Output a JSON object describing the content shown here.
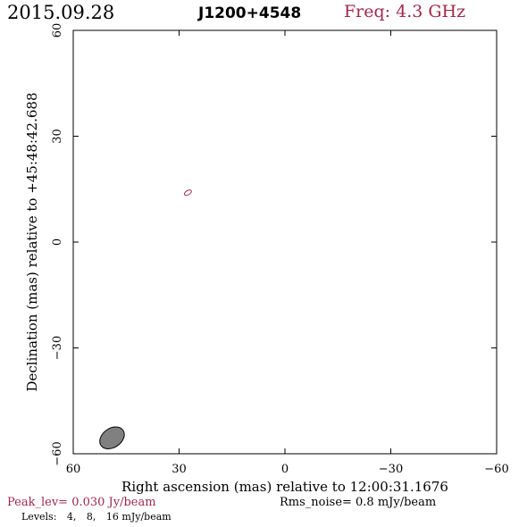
{
  "header": {
    "date": "2015.09.28",
    "source": "J1200+4548",
    "freq": "Freq: 4.3 GHz"
  },
  "footer": {
    "peak": "Peak_lev=  0.030 Jy/beam",
    "rms": "Rms_noise=   0.8 mJy/beam",
    "levels_label": "Levels:",
    "levels": [
      "4,",
      "8,",
      "16 mJy/beam"
    ]
  },
  "colors": {
    "accent": "#a0284a",
    "beam_fill": "#808080",
    "axis": "#000000"
  },
  "chart_data": {
    "type": "contour",
    "title": "J1200+4548",
    "xlabel": "Right ascension (mas) relative to 12:00:31.1676",
    "ylabel": "Declination (mas) relative to +45:48:42.688",
    "xlim": [
      60,
      -60
    ],
    "ylim": [
      -60,
      60
    ],
    "xticks": [
      60,
      30,
      0,
      -30,
      -60
    ],
    "yticks": [
      60,
      30,
      0,
      -30,
      -60
    ],
    "xtick_labels": [
      "60",
      "30",
      "0",
      "−30",
      "−60"
    ],
    "ytick_labels": [
      "60",
      "30",
      "0",
      "−30",
      "−60"
    ],
    "contour_levels_mJy": [
      4,
      8,
      16
    ],
    "contours": [
      {
        "level_mJy": 4,
        "center": [
          27.5,
          14
        ],
        "semi_major": 1.1,
        "semi_minor": 0.6,
        "angle_deg": -30
      }
    ],
    "beam": {
      "center": [
        49,
        -55.5
      ],
      "semi_major": 3.8,
      "semi_minor": 2.7,
      "angle_deg": -35
    }
  }
}
